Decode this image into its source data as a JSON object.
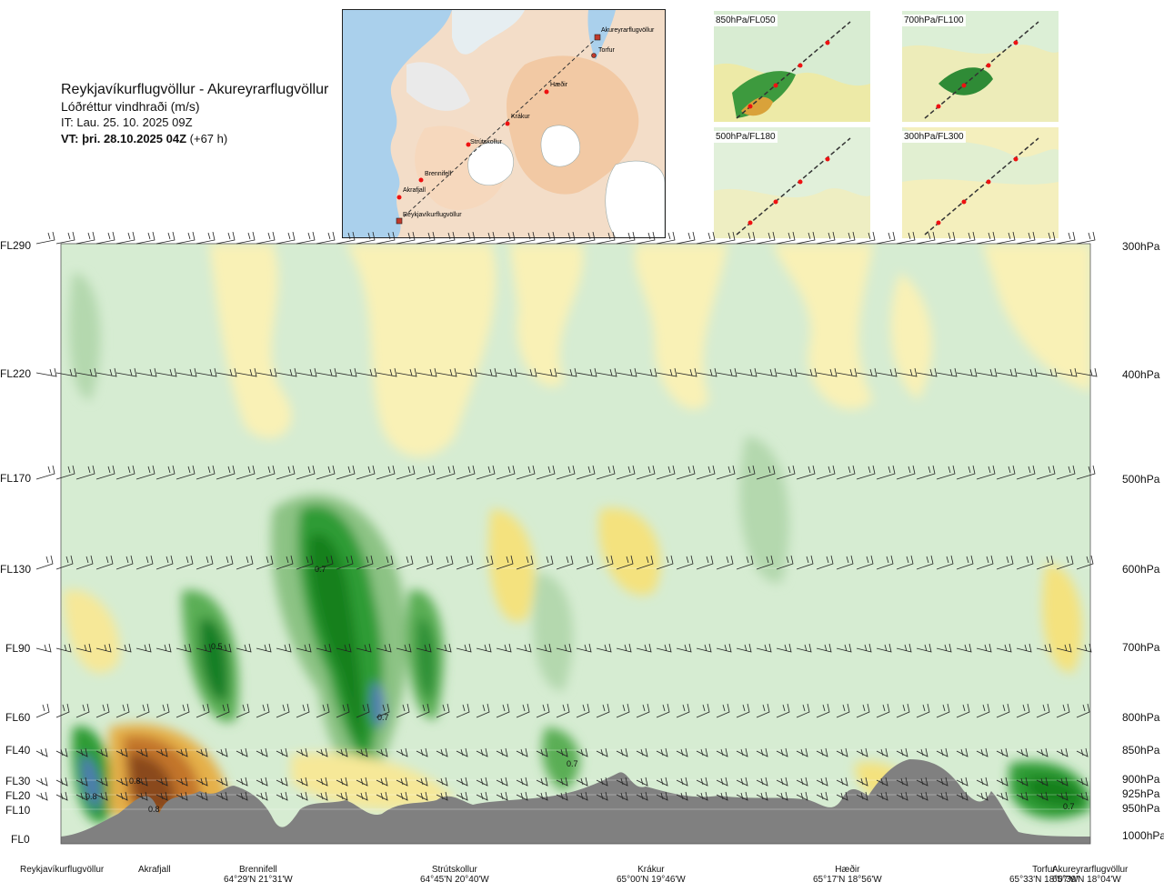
{
  "header": {
    "route_title": "Reykjavíkurflugvöllur - Akureyrarflugvöllur",
    "subtitle": "Lóðréttur vindhraði (m/s)",
    "issue_time": "IT: Lau. 25. 10. 2025 09Z",
    "valid_time_bold": "VT: þri. 28.10.2025 04Z",
    "valid_time_extra": "(+67 h)"
  },
  "map": {
    "labels": [
      "Akureyrarflugvöllur",
      "Torfur",
      "Hæðir",
      "Krákur",
      "Strútskollur",
      "Brennifell",
      "Akrafjall",
      "Reykjavíkurflugvöllur"
    ]
  },
  "mini_maps": [
    {
      "label": "850hPa/FL050"
    },
    {
      "label": "700hPa/FL100"
    },
    {
      "label": "500hPa/FL180"
    },
    {
      "label": "300hPa/FL300"
    }
  ],
  "colors": {
    "light_green": "#cfe8cc",
    "mid_green": "#96ca8e",
    "green": "#4fa54b",
    "dark_green": "#17881d",
    "darker_green": "#0d6b2a",
    "blue": "#4f79b5",
    "pale_yellow": "#f8f0b0",
    "yellow": "#eddc64",
    "orange": "#d99a35",
    "brown": "#8a4a1e",
    "terrain": "#808080"
  },
  "chart_data": {
    "type": "heatmap",
    "left_axis_ticks": [
      "FL290",
      "FL220",
      "FL170",
      "FL130",
      "FL90",
      "FL60",
      "FL40",
      "FL30",
      "FL20",
      "FL10",
      "FL0"
    ],
    "right_axis_ticks": [
      "300hPa",
      "400hPa",
      "500hPa",
      "600hPa",
      "700hPa",
      "800hPa",
      "850hPa",
      "900hPa",
      "925hPa",
      "950hPa",
      "1000hPa"
    ],
    "waypoints": [
      {
        "name": "Reykjavíkurflugvöllur",
        "coord": ""
      },
      {
        "name": "Akrafjall",
        "coord": ""
      },
      {
        "name": "Brennifell",
        "coord": "64°29'N 21°31'W"
      },
      {
        "name": "Strútskollur",
        "coord": "64°45'N 20°40'W"
      },
      {
        "name": "Krákur",
        "coord": "65°00'N 19°46'W"
      },
      {
        "name": "Hæðir",
        "coord": "65°17'N 18°56'W"
      },
      {
        "name": "Torfur",
        "coord": "65°33'N 18°07'W"
      },
      {
        "name": "Akureyrarflugvöllur",
        "coord": "65°39'N 18°04'W"
      }
    ],
    "value_labels": [
      "0.7",
      "0.5",
      "0.7",
      "0.8",
      "0.8",
      "0.8",
      "0.7",
      "0.7"
    ]
  }
}
